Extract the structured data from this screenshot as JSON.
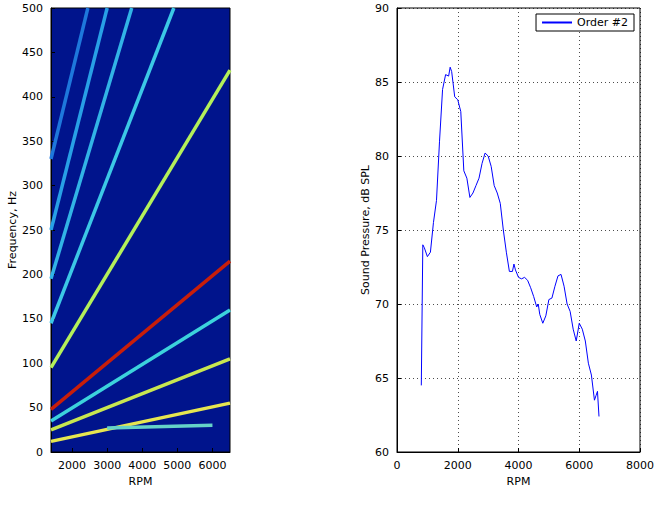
{
  "chart_data": [
    {
      "type": "line",
      "xlabel": "RPM",
      "ylabel": "Frequency, Hz",
      "xlim": [
        1400,
        6500
      ],
      "xticks": [
        2000,
        3000,
        4000,
        5000,
        6000
      ],
      "ylim": [
        0,
        500
      ],
      "yticks": [
        0,
        50,
        100,
        150,
        200,
        250,
        300,
        350,
        400,
        450,
        500
      ],
      "grid": false,
      "series": [
        {
          "color": "#e6e650",
          "x": [
            1400,
            6500
          ],
          "values": [
            12,
            55
          ]
        },
        {
          "color": "#64d2c8",
          "x": [
            3000,
            6000
          ],
          "values": [
            27,
            30
          ]
        },
        {
          "color": "#c8e650",
          "x": [
            1400,
            6500
          ],
          "values": [
            25,
            105
          ]
        },
        {
          "color": "#3cd2dc",
          "x": [
            1400,
            6500
          ],
          "values": [
            35,
            160
          ]
        },
        {
          "color": "#1e78dc",
          "x": [
            1400,
            2450
          ],
          "values": [
            330,
            500
          ]
        },
        {
          "color": "#28a0e6",
          "x": [
            1400,
            3000
          ],
          "values": [
            250,
            500
          ]
        },
        {
          "color": "#32b4e6",
          "x": [
            1400,
            3700
          ],
          "values": [
            195,
            500
          ]
        },
        {
          "color": "#3cc8e6",
          "x": [
            1400,
            4900
          ],
          "values": [
            145,
            500
          ]
        },
        {
          "color": "#b4f05a",
          "x": [
            1400,
            6500
          ],
          "values": [
            95,
            430
          ]
        },
        {
          "color": "#c81e0a",
          "x": [
            1400,
            6500
          ],
          "values": [
            48,
            215
          ]
        }
      ]
    },
    {
      "type": "line",
      "xlabel": "RPM",
      "ylabel": "Sound Pressure, dB SPL",
      "xlim": [
        0,
        8000
      ],
      "xticks": [
        0,
        2000,
        4000,
        6000,
        8000
      ],
      "ylim": [
        60,
        90
      ],
      "yticks": [
        60,
        65,
        70,
        75,
        80,
        85,
        90
      ],
      "grid": true,
      "legend": "upper right",
      "series": [
        {
          "name": "Order #2",
          "color": "#0000ff",
          "x": [
            800,
            850,
            900,
            1000,
            1100,
            1200,
            1300,
            1400,
            1500,
            1600,
            1700,
            1750,
            1800,
            1900,
            2000,
            2100,
            2200,
            2300,
            2400,
            2500,
            2600,
            2700,
            2800,
            2900,
            3000,
            3100,
            3200,
            3300,
            3400,
            3500,
            3600,
            3700,
            3800,
            3850,
            3900,
            4000,
            4100,
            4200,
            4300,
            4400,
            4500,
            4600,
            4650,
            4700,
            4800,
            4900,
            5000,
            5100,
            5200,
            5300,
            5400,
            5500,
            5600,
            5700,
            5800,
            5900,
            6000,
            6100,
            6200,
            6300,
            6400,
            6500,
            6550,
            6600,
            6650
          ],
          "values": [
            64.5,
            74,
            73.8,
            73.2,
            73.5,
            75.5,
            77,
            81,
            84.5,
            85.5,
            85.4,
            86,
            85.7,
            84,
            83.8,
            83,
            79,
            78.5,
            77.2,
            77.5,
            78,
            78.5,
            79.5,
            80.2,
            80,
            79.3,
            78,
            77.5,
            76.8,
            75,
            73.5,
            72.2,
            72.2,
            72.7,
            72.3,
            71.8,
            71.7,
            71.8,
            71.6,
            71.1,
            70.5,
            69.8,
            70,
            69.3,
            68.7,
            69.2,
            70.3,
            70.4,
            71.2,
            71.9,
            72,
            71.2,
            70,
            69.5,
            68.3,
            67.5,
            68.7,
            68.3,
            67.5,
            66,
            65.2,
            63.5,
            63.8,
            64.1,
            62.4
          ]
        }
      ]
    }
  ]
}
